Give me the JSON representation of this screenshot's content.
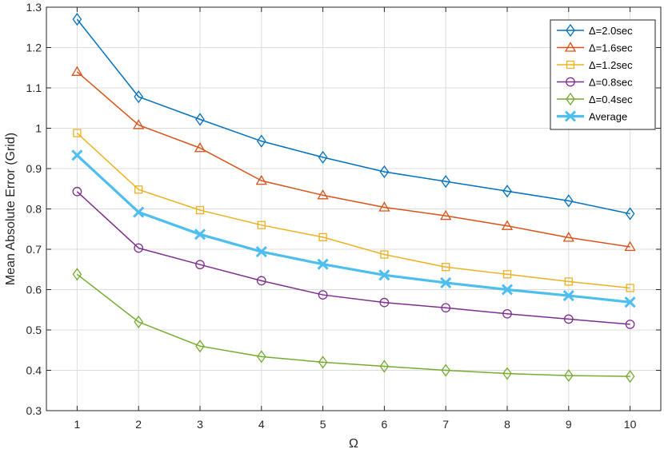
{
  "chart_data": {
    "type": "line",
    "title": "",
    "xlabel": "Ω",
    "ylabel": "Mean Absolute Error (Grid)",
    "x": [
      1,
      2,
      3,
      4,
      5,
      6,
      7,
      8,
      9,
      10
    ],
    "xlim": [
      0.5,
      10.5
    ],
    "ylim": [
      0.3,
      1.3
    ],
    "xticks": [
      "1",
      "2",
      "3",
      "4",
      "5",
      "6",
      "7",
      "8",
      "9",
      "10"
    ],
    "yticks": [
      "0.3",
      "0.4",
      "0.5",
      "0.6",
      "0.7",
      "0.8",
      "0.9",
      "1",
      "1.1",
      "1.2",
      "1.3"
    ],
    "grid": true,
    "legend_position": "top-right",
    "series": [
      {
        "name": "Δ=2.0sec",
        "color": "#0072BD",
        "marker": "diamond",
        "values": [
          1.27,
          1.078,
          1.022,
          0.968,
          0.928,
          0.892,
          0.868,
          0.844,
          0.82,
          0.788
        ]
      },
      {
        "name": "Δ=1.6sec",
        "color": "#D95319",
        "marker": "triangle",
        "values": [
          1.14,
          1.008,
          0.951,
          0.87,
          0.834,
          0.804,
          0.783,
          0.758,
          0.729,
          0.706
        ]
      },
      {
        "name": "Δ=1.2sec",
        "color": "#EDB120",
        "marker": "square",
        "values": [
          0.988,
          0.848,
          0.797,
          0.76,
          0.73,
          0.687,
          0.656,
          0.638,
          0.62,
          0.604
        ]
      },
      {
        "name": "Δ=0.8sec",
        "color": "#7E2F8E",
        "marker": "circle",
        "values": [
          0.843,
          0.703,
          0.662,
          0.622,
          0.587,
          0.568,
          0.555,
          0.54,
          0.527,
          0.514
        ]
      },
      {
        "name": "Δ=0.4sec",
        "color": "#77AC30",
        "marker": "diamond",
        "values": [
          0.638,
          0.52,
          0.46,
          0.434,
          0.42,
          0.41,
          0.4,
          0.392,
          0.387,
          0.385
        ]
      },
      {
        "name": "Average",
        "color": "#4DBEEE",
        "marker": "x",
        "bold": true,
        "values": [
          0.933,
          0.792,
          0.737,
          0.694,
          0.663,
          0.636,
          0.617,
          0.6,
          0.585,
          0.569
        ]
      }
    ]
  }
}
